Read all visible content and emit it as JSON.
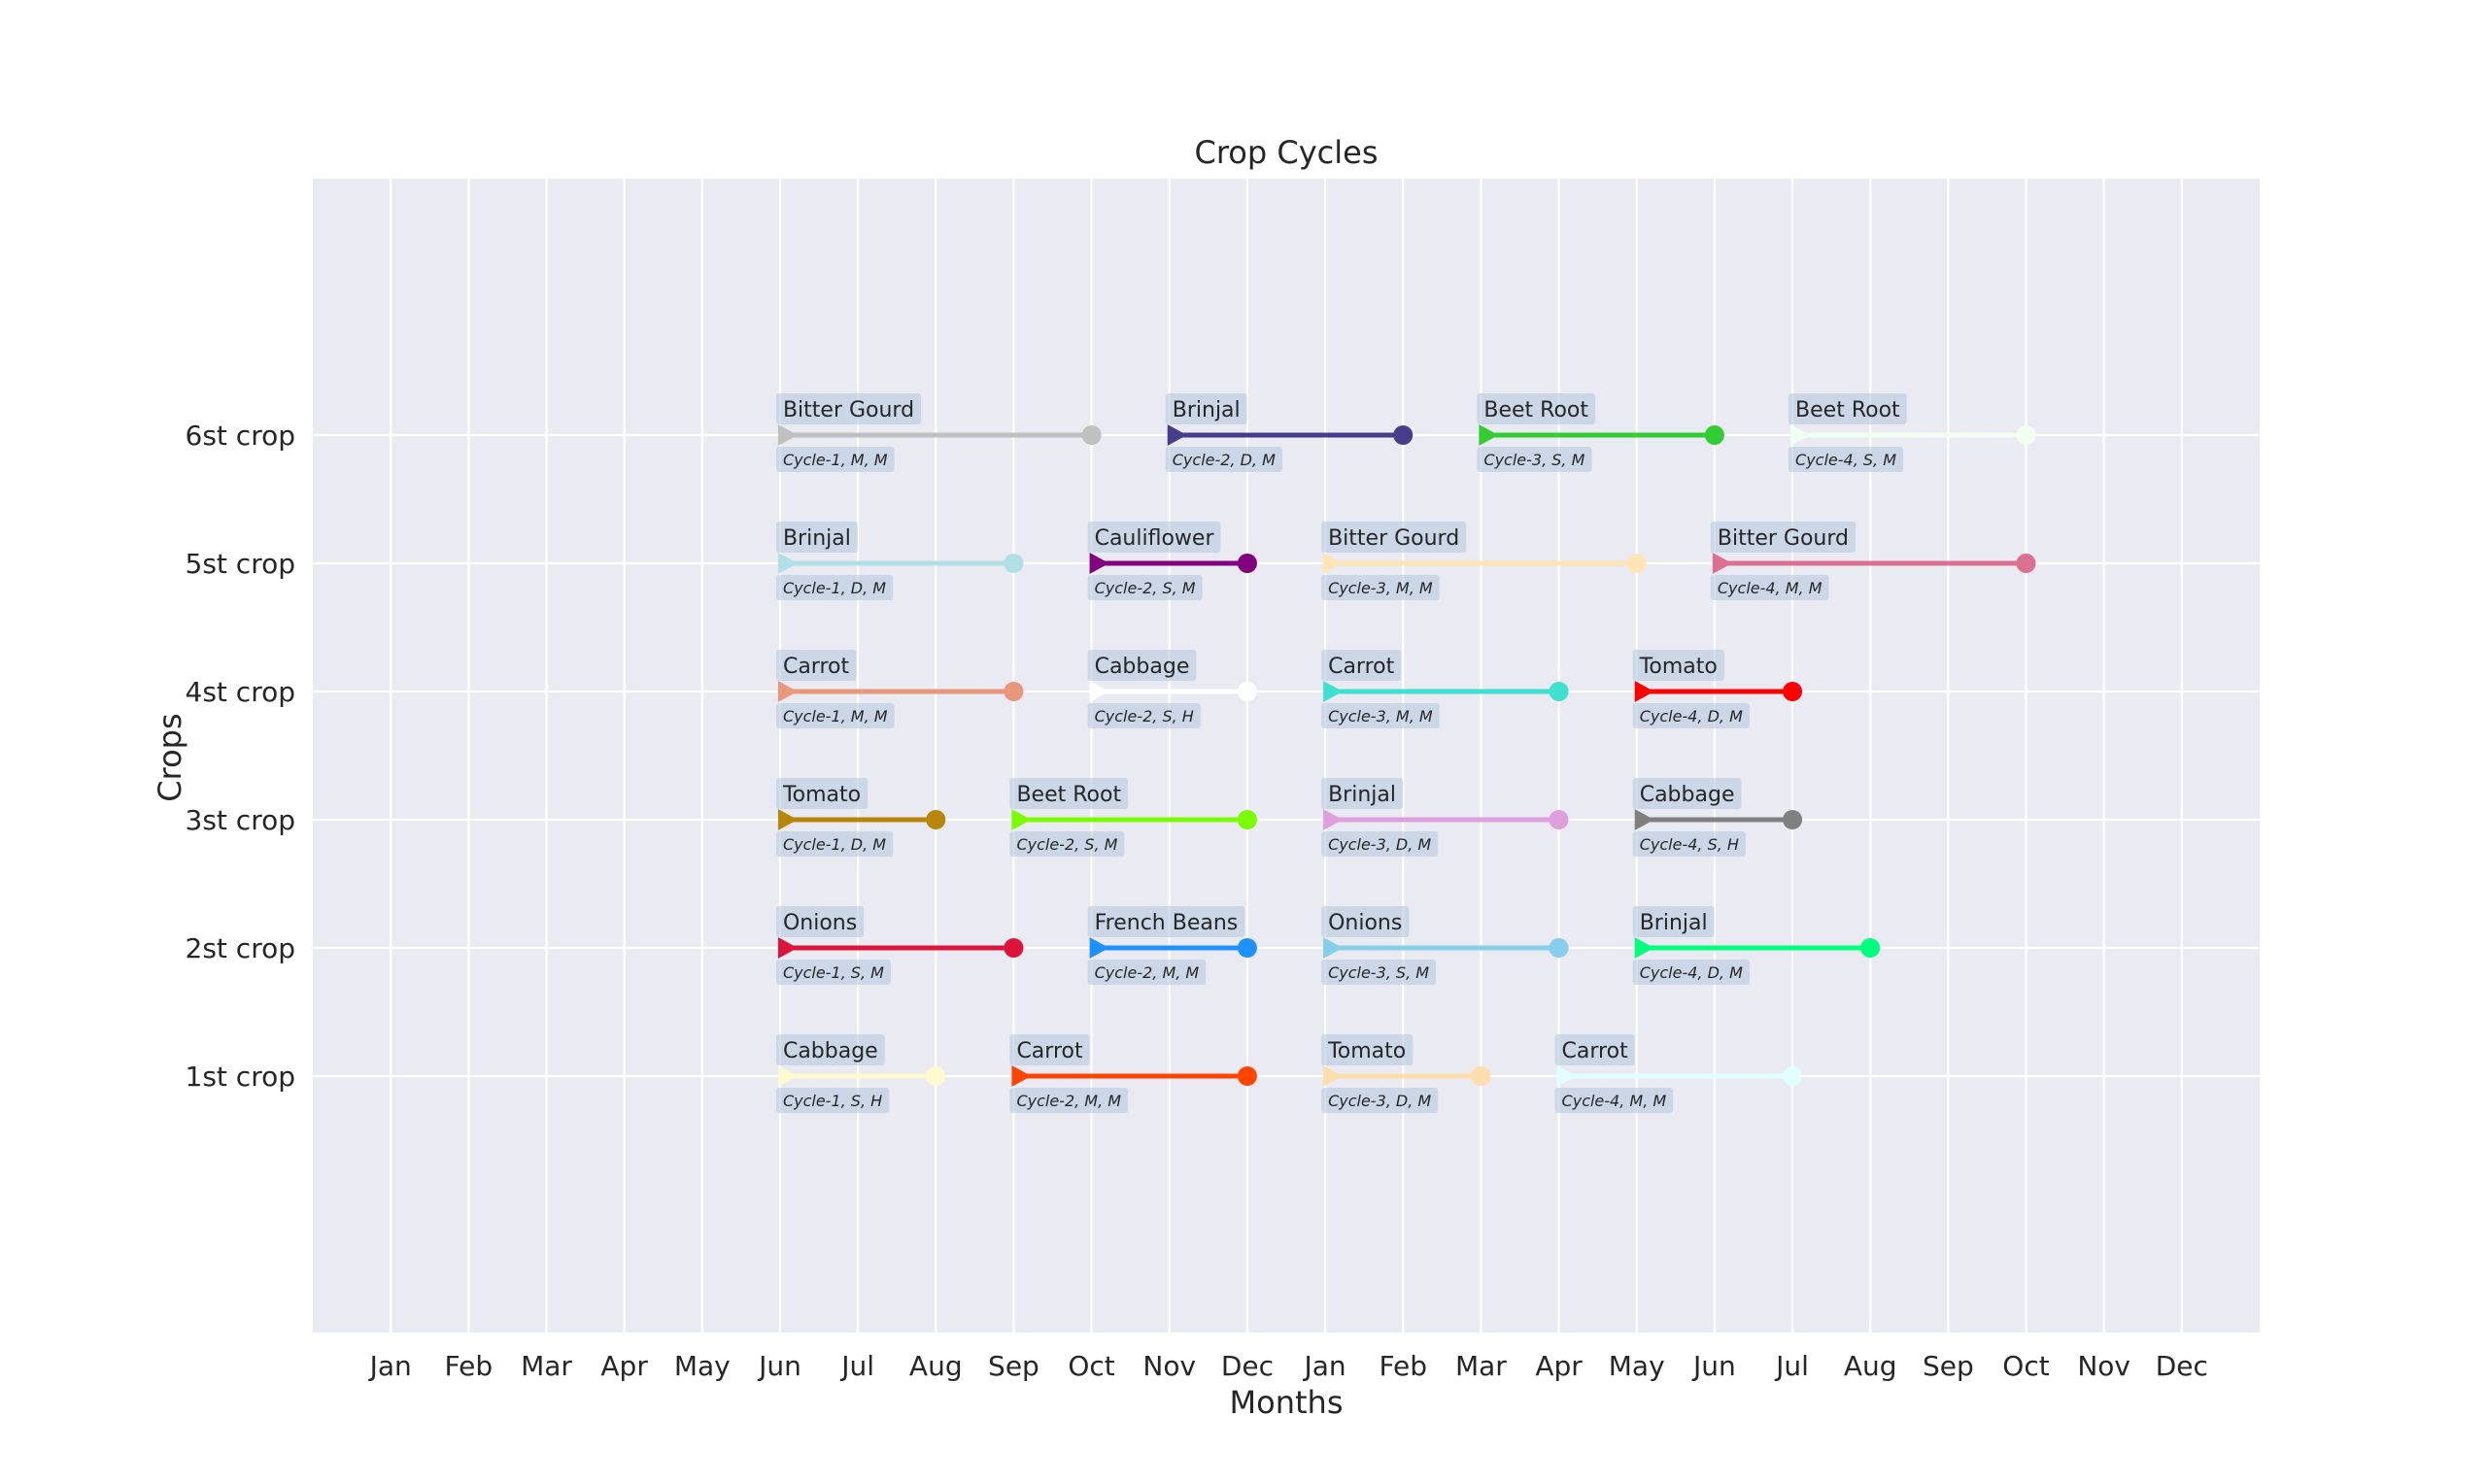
{
  "chart_data": {
    "type": "timeline",
    "title": "Crop Cycles",
    "xlabel": "Months",
    "ylabel": "Crops",
    "x_tick_labels": [
      "Jan",
      "Feb",
      "Mar",
      "Apr",
      "May",
      "Jun",
      "Jul",
      "Aug",
      "Sep",
      "Oct",
      "Nov",
      "Dec",
      "Jan",
      "Feb",
      "Mar",
      "Apr",
      "May",
      "Jun",
      "Jul",
      "Aug",
      "Sep",
      "Oct",
      "Nov",
      "Dec"
    ],
    "y_tick_labels": [
      "1st crop",
      "2st crop",
      "3st crop",
      "4st crop",
      "5st crop",
      "6st crop"
    ],
    "xlim": [
      -1,
      24
    ],
    "ylim": [
      -1,
      8
    ],
    "grid": true,
    "series": [
      {
        "row": 6,
        "name": "Bitter Gourd",
        "detail": "Cycle-1, M, M",
        "start": 5,
        "end": 9,
        "color": "#c0c0c0"
      },
      {
        "row": 6,
        "name": "Brinjal",
        "detail": "Cycle-2, D, M",
        "start": 10,
        "end": 13,
        "color": "#483d8b"
      },
      {
        "row": 6,
        "name": "Beet Root",
        "detail": "Cycle-3, S, M",
        "start": 14,
        "end": 17,
        "color": "#32cd32"
      },
      {
        "row": 6,
        "name": "Beet Root",
        "detail": "Cycle-4, S, M",
        "start": 18,
        "end": 21,
        "color": "#f0fff0"
      },
      {
        "row": 5,
        "name": "Brinjal",
        "detail": "Cycle-1, D, M",
        "start": 5,
        "end": 8,
        "color": "#b0e0e6"
      },
      {
        "row": 5,
        "name": "Cauliflower",
        "detail": "Cycle-2, S, M",
        "start": 9,
        "end": 11,
        "color": "#800080"
      },
      {
        "row": 5,
        "name": "Bitter Gourd",
        "detail": "Cycle-3, M, M",
        "start": 12,
        "end": 16,
        "color": "#ffe4b5"
      },
      {
        "row": 5,
        "name": "Bitter Gourd",
        "detail": "Cycle-4, M, M",
        "start": 17,
        "end": 21,
        "color": "#db7093"
      },
      {
        "row": 4,
        "name": "Carrot",
        "detail": "Cycle-1, M, M",
        "start": 5,
        "end": 8,
        "color": "#e9967a"
      },
      {
        "row": 4,
        "name": "Cabbage",
        "detail": "Cycle-2, S, H",
        "start": 9,
        "end": 11,
        "color": "#ffffff"
      },
      {
        "row": 4,
        "name": "Carrot",
        "detail": "Cycle-3, M, M",
        "start": 12,
        "end": 15,
        "color": "#40e0d0"
      },
      {
        "row": 4,
        "name": "Tomato",
        "detail": "Cycle-4, D, M",
        "start": 16,
        "end": 18,
        "color": "#ff0000"
      },
      {
        "row": 3,
        "name": "Tomato",
        "detail": "Cycle-1, D, M",
        "start": 5,
        "end": 7,
        "color": "#b8860b"
      },
      {
        "row": 3,
        "name": "Beet Root",
        "detail": "Cycle-2, S, M",
        "start": 8,
        "end": 11,
        "color": "#7cfc00"
      },
      {
        "row": 3,
        "name": "Brinjal",
        "detail": "Cycle-3, D, M",
        "start": 12,
        "end": 15,
        "color": "#dda0dd"
      },
      {
        "row": 3,
        "name": "Cabbage",
        "detail": "Cycle-4, S, H",
        "start": 16,
        "end": 18,
        "color": "#808080"
      },
      {
        "row": 2,
        "name": "Onions",
        "detail": "Cycle-1, S, M",
        "start": 5,
        "end": 8,
        "color": "#dc143c"
      },
      {
        "row": 2,
        "name": "French Beans",
        "detail": "Cycle-2, M, M",
        "start": 9,
        "end": 11,
        "color": "#1e90ff"
      },
      {
        "row": 2,
        "name": "Onions",
        "detail": "Cycle-3, S, M",
        "start": 12,
        "end": 15,
        "color": "#87ceeb"
      },
      {
        "row": 2,
        "name": "Brinjal",
        "detail": "Cycle-4, D, M",
        "start": 16,
        "end": 19,
        "color": "#00ff7f"
      },
      {
        "row": 1,
        "name": "Cabbage",
        "detail": "Cycle-1, S, H",
        "start": 5,
        "end": 7,
        "color": "#fffacd"
      },
      {
        "row": 1,
        "name": "Carrot",
        "detail": "Cycle-2, M, M",
        "start": 8,
        "end": 11,
        "color": "#ff4500"
      },
      {
        "row": 1,
        "name": "Tomato",
        "detail": "Cycle-3, D, M",
        "start": 12,
        "end": 14,
        "color": "#ffdead"
      },
      {
        "row": 1,
        "name": "Carrot",
        "detail": "Cycle-4, M, M",
        "start": 15,
        "end": 18,
        "color": "#e0ffff"
      }
    ]
  },
  "colors": {
    "plot_background": "#eaeaf2",
    "grid": "#ffffff",
    "label_box": "#b0c4de",
    "text": "#262626"
  }
}
